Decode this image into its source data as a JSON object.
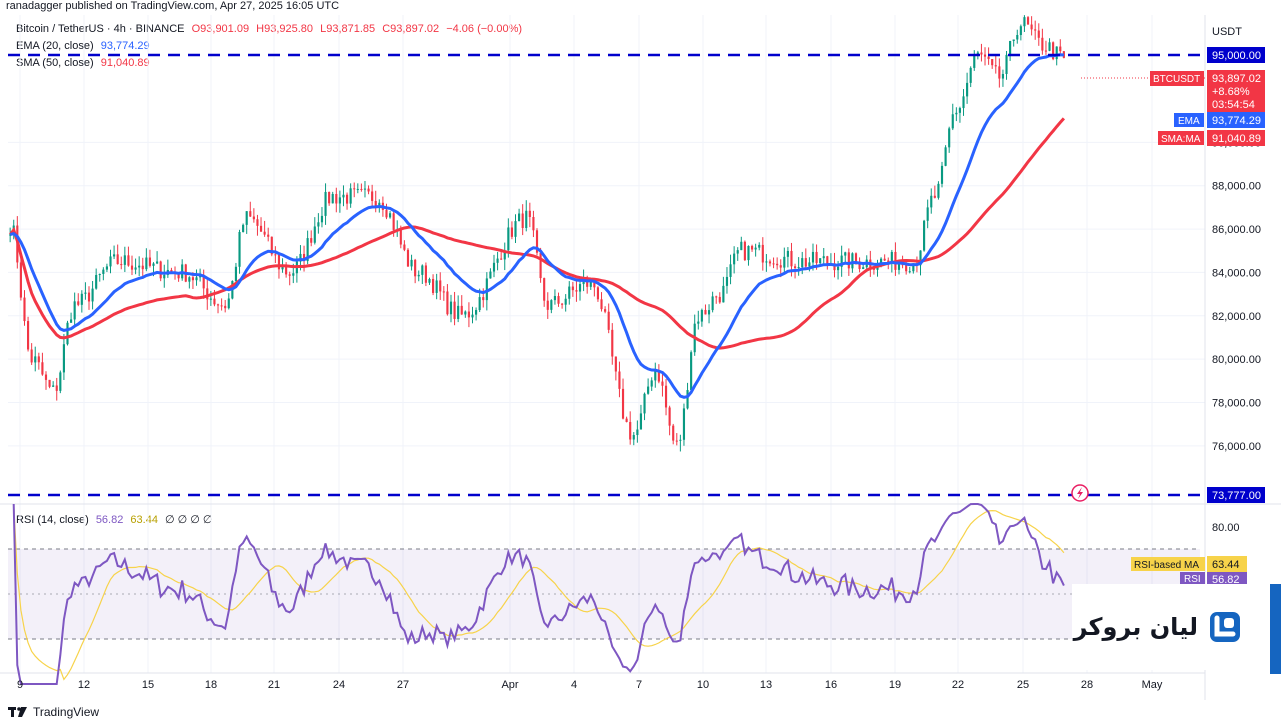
{
  "header": {
    "publisher_line": "ranadagger published on TradingView.com, Apr 27, 2025 16:05 UTC"
  },
  "legend": {
    "symbol": "Bitcoin / TetherUS · 4h · BINANCE",
    "open": "O93,901.09",
    "high": "H93,925.80",
    "low": "L93,871.85",
    "close": "C93,897.02",
    "change": "−4.06 (−0.00%)",
    "ema_label": "EMA (20, close)",
    "ema_value": "93,774.29",
    "sma_label": "SMA (50, close)",
    "sma_value": "91,040.89"
  },
  "rsi_legend": {
    "label": "RSI (14, close)",
    "value": "56.82",
    "ma_value": "63.44",
    "extras": "∅ ∅ ∅ ∅"
  },
  "price_axis": {
    "currency": "USDT",
    "ticks": [
      "90,000.00",
      "88,000.00",
      "86,000.00",
      "84,000.00",
      "82,000.00",
      "80,000.00",
      "78,000.00",
      "76,000.00"
    ]
  },
  "price_labels": {
    "level_high": "95,000.00",
    "level_low": "73,777.00",
    "symbol_tag": "BTCUSDT",
    "last_price": "93,897.02",
    "last_change": "+8.68%",
    "countdown": "03:54:54",
    "ema_tag": "EMA",
    "ema_price": "93,774.29",
    "sma_tag": "SMA:MA",
    "sma_price": "91,040.89"
  },
  "rsi_axis": {
    "tick": "80.00",
    "ma_tag": "RSI-based MA",
    "ma_value": "63.44",
    "rsi_tag": "RSI",
    "rsi_value": "56.82"
  },
  "time_axis": [
    "9",
    "12",
    "15",
    "18",
    "21",
    "24",
    "27",
    "Apr",
    "4",
    "7",
    "10",
    "13",
    "16",
    "19",
    "22",
    "25",
    "28",
    "May"
  ],
  "footer": {
    "brand": "TradingView"
  },
  "watermark": {
    "text": "لیان بروکر"
  },
  "colors": {
    "ema": "#2962ff",
    "sma": "#f23645",
    "rsi": "#7e57c2",
    "rsi_ma": "#f7d34a",
    "up": "#089981",
    "down": "#f23645",
    "level": "#0000cc"
  },
  "chart_data": {
    "type": "line",
    "title": "Bitcoin / TetherUS · 4h · BINANCE",
    "y_range": [
      73500,
      96200
    ],
    "price_key_points": [
      {
        "date": "Mar 9",
        "price": 86200
      },
      {
        "date": "Mar 10",
        "price": 80000
      },
      {
        "date": "Mar 11",
        "price": 78500
      },
      {
        "date": "Mar 12",
        "price": 82500
      },
      {
        "date": "Mar 14",
        "price": 84500
      },
      {
        "date": "Mar 17",
        "price": 84000
      },
      {
        "date": "Mar 19",
        "price": 82500
      },
      {
        "date": "Mar 20",
        "price": 86500
      },
      {
        "date": "Mar 22",
        "price": 84000
      },
      {
        "date": "Mar 24",
        "price": 87500
      },
      {
        "date": "Mar 26",
        "price": 87500
      },
      {
        "date": "Mar 28",
        "price": 84000
      },
      {
        "date": "Mar 30",
        "price": 82000
      },
      {
        "date": "Apr 2",
        "price": 86500
      },
      {
        "date": "Apr 3",
        "price": 82500
      },
      {
        "date": "Apr 5",
        "price": 83500
      },
      {
        "date": "Apr 7",
        "price": 76500
      },
      {
        "date": "Apr 8",
        "price": 79500
      },
      {
        "date": "Apr 9",
        "price": 76000
      },
      {
        "date": "Apr 10",
        "price": 82000
      },
      {
        "date": "Apr 11",
        "price": 83000
      },
      {
        "date": "Apr 12",
        "price": 85000
      },
      {
        "date": "Apr 15",
        "price": 84500
      },
      {
        "date": "Apr 17",
        "price": 84500
      },
      {
        "date": "Apr 20",
        "price": 84500
      },
      {
        "date": "Apr 21",
        "price": 87500
      },
      {
        "date": "Apr 22",
        "price": 91500
      },
      {
        "date": "Apr 23",
        "price": 94000
      },
      {
        "date": "Apr 24",
        "price": 93000
      },
      {
        "date": "Apr 25",
        "price": 95500
      },
      {
        "date": "Apr 26",
        "price": 94500
      },
      {
        "date": "Apr 27",
        "price": 93897
      }
    ],
    "series": [
      {
        "name": "EMA (20, close)",
        "last": 93774.29
      },
      {
        "name": "SMA (50, close)",
        "last": 91040.89
      }
    ],
    "horizontal_levels": [
      95000,
      73777
    ],
    "rsi": {
      "label": "RSI (14, close)",
      "last": 56.82,
      "ma_last": 63.44,
      "bands": [
        70,
        30
      ]
    }
  }
}
